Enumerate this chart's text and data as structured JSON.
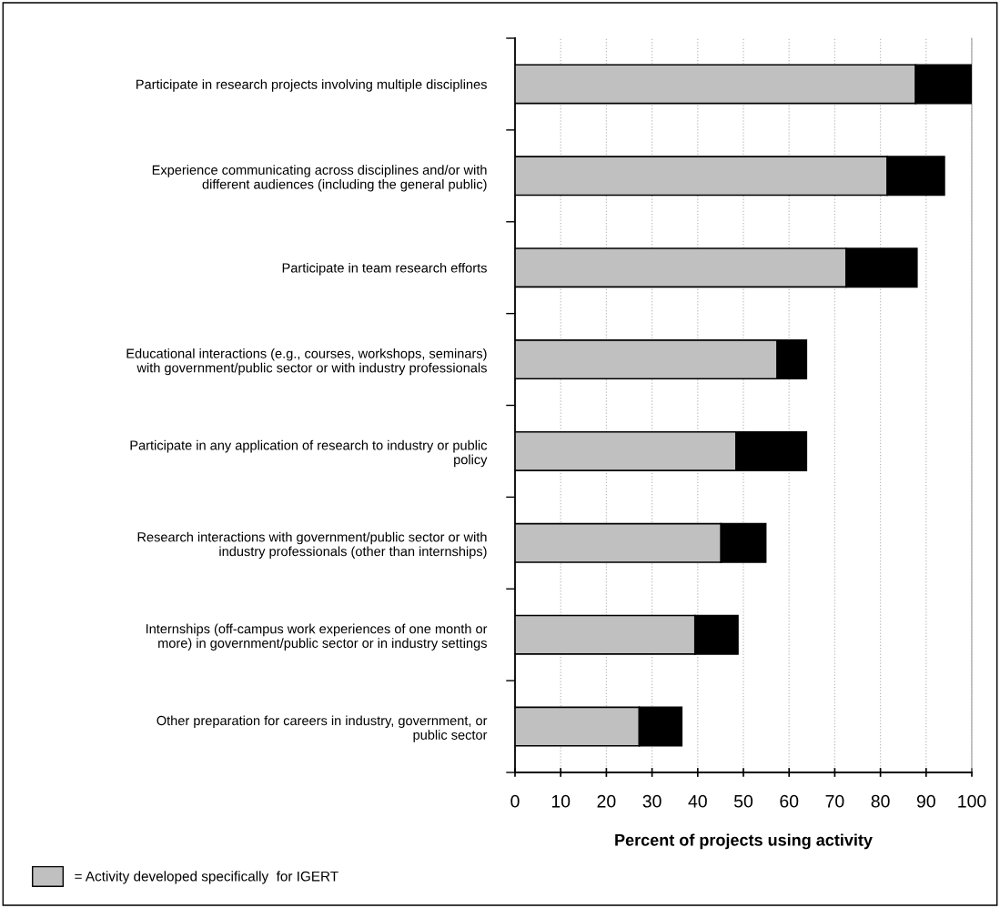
{
  "chart_data": {
    "type": "bar",
    "orientation": "horizontal",
    "stacked": true,
    "xlabel": "Percent of projects using activity",
    "categories": [
      "Participate in research projects involving multiple disciplines",
      "Experience communicating across disciplines and/or with\ndifferent audiences (including the general public)",
      "Participate in team research efforts",
      "Educational interactions (e.g., courses, workshops, seminars)\nwith government/public sector or with industry professionals",
      "Participate in any application of research to industry or public\npolicy",
      "Research interactions with government/public sector or with\nindustry professionals (other than internships)",
      "Internships (off-campus work experiences of one month or\nmore) in government/public sector or in industry settings",
      "Other preparation for careers in industry, government, or\npublic sector"
    ],
    "series": [
      {
        "name": "= Activity developed specifically  for IGERT",
        "color": "#c0c0c0",
        "values": [
          87.7,
          81.5,
          72.5,
          57.4,
          48.4,
          45.1,
          39.4,
          27.2
        ]
      },
      {
        "color": "#000000",
        "values": [
          12.3,
          12.5,
          15.5,
          6.4,
          15.4,
          9.8,
          9.4,
          9.3
        ]
      }
    ],
    "xlim": [
      0,
      100
    ],
    "xticks": [
      0,
      10,
      20,
      30,
      40,
      50,
      60,
      70,
      80,
      90,
      100
    ],
    "grid": "x",
    "legend": "bottom left"
  }
}
